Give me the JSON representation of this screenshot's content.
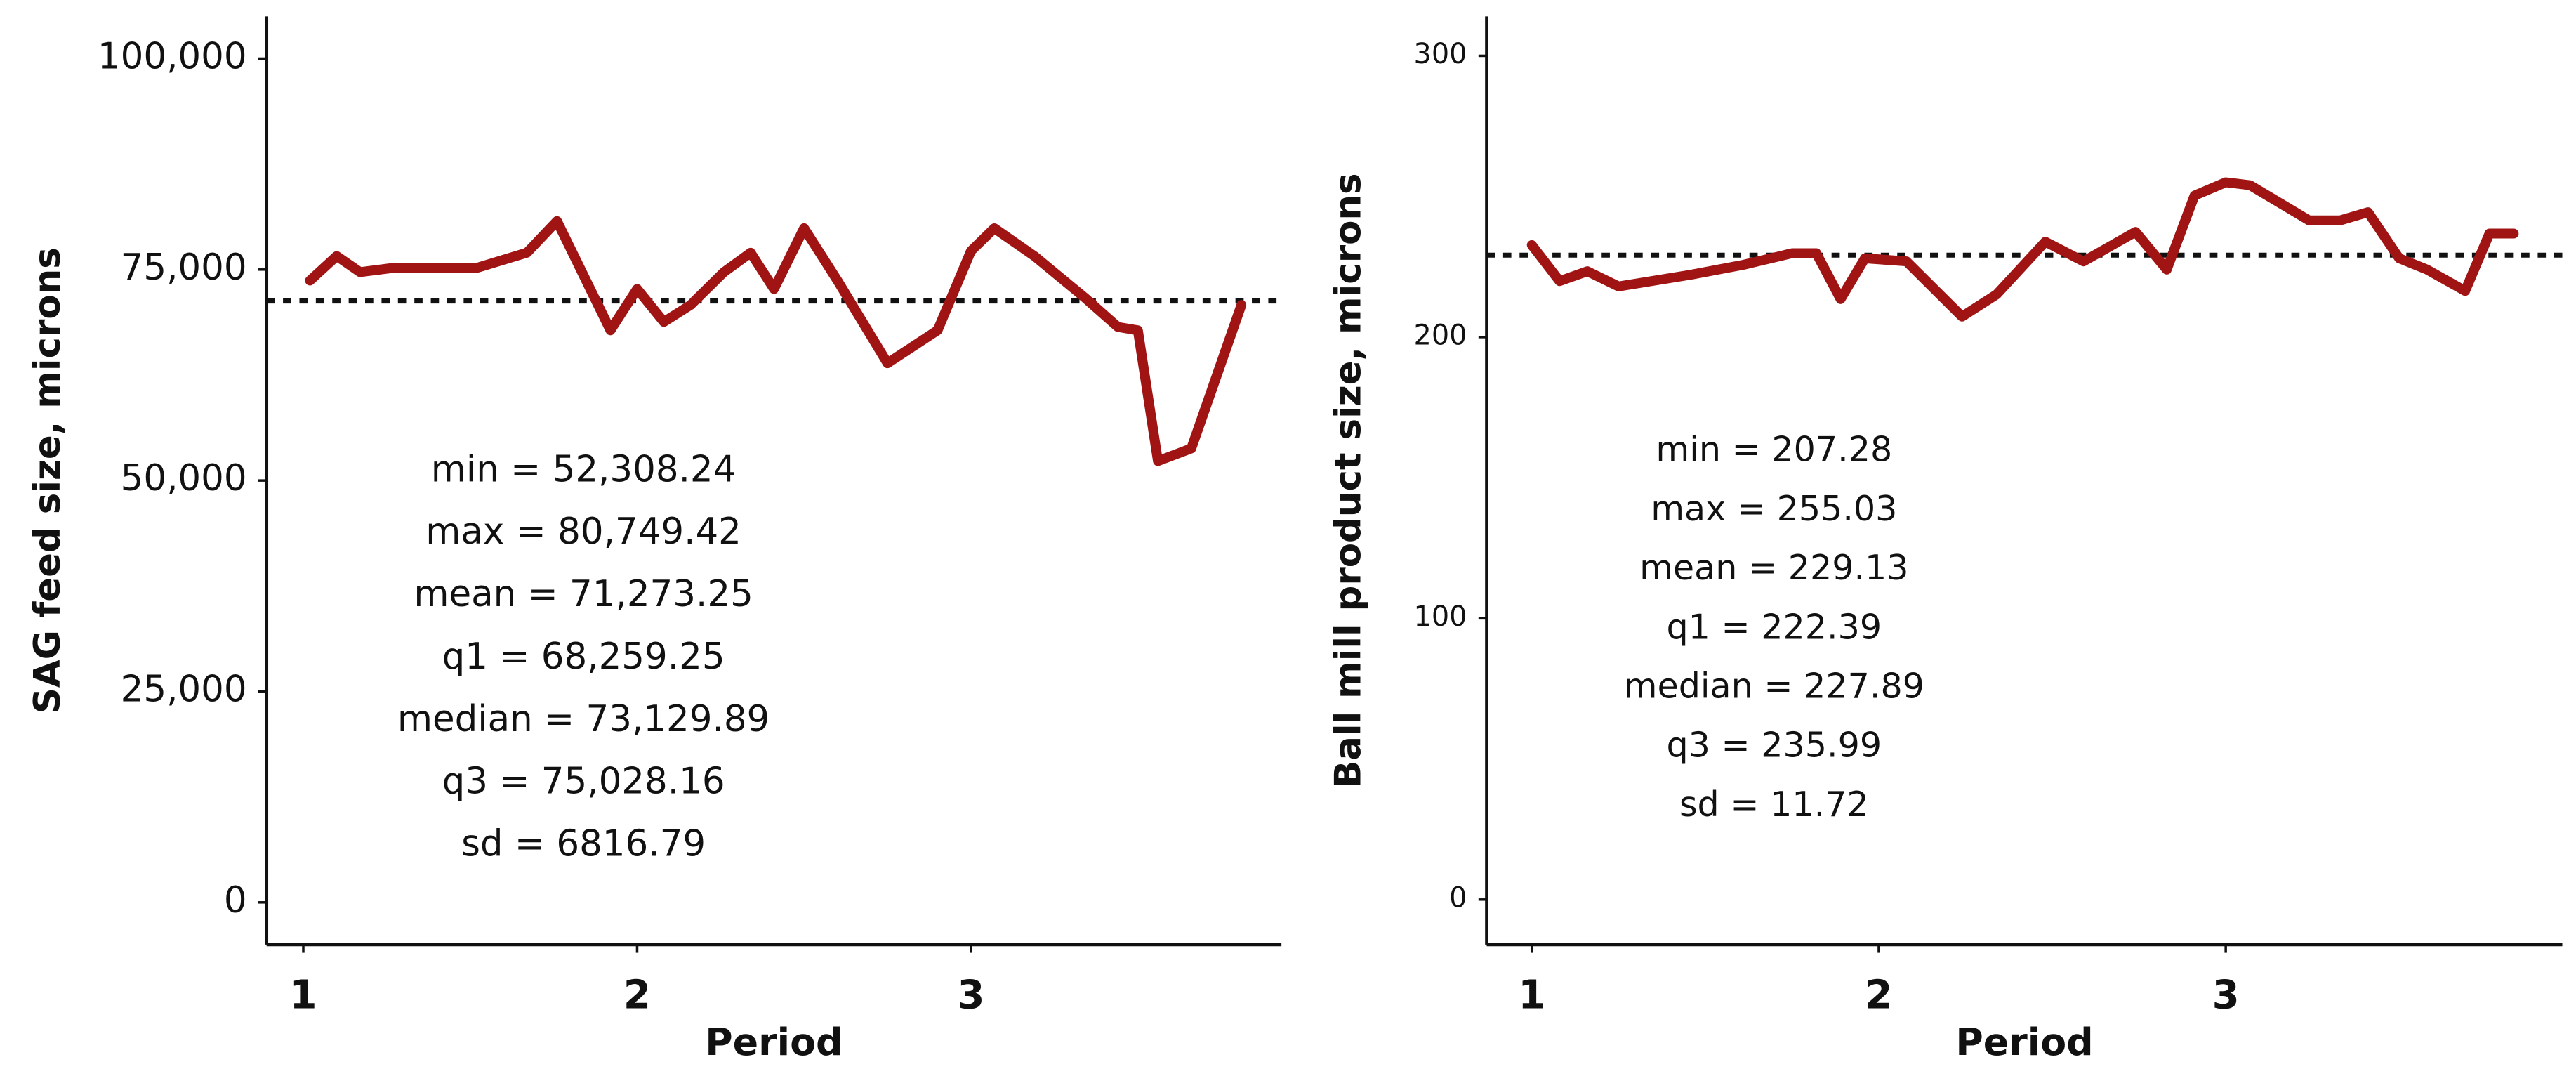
{
  "chart_data": [
    {
      "type": "line",
      "xlabel": "Period",
      "ylabel": "SAG feed size, microns",
      "x": [
        1.02,
        1.1,
        1.17,
        1.27,
        1.52,
        1.67,
        1.76,
        1.92,
        2.0,
        2.08,
        2.16,
        2.26,
        2.34,
        2.41,
        2.5,
        2.6,
        2.75,
        2.9,
        3.0,
        3.07,
        3.19,
        3.34,
        3.44,
        3.5,
        3.56,
        3.66,
        3.81
      ],
      "values": [
        73700,
        76600,
        74700,
        75200,
        75200,
        77000,
        80749.42,
        67800,
        72700,
        68800,
        70800,
        74700,
        77000,
        72700,
        79900,
        73700,
        63900,
        67800,
        77200,
        79900,
        76600,
        71700,
        68200,
        67800,
        52308.24,
        53800,
        70800
      ],
      "color": "#a01414",
      "hline": 71273.25,
      "xlim": [
        0.89,
        3.93
      ],
      "xticks": [
        1,
        2,
        3
      ],
      "ylim": [
        -5000,
        105000
      ],
      "yticks": [
        0,
        {
          "value": 25000,
          "label": "25,000"
        },
        {
          "value": 50000,
          "label": "50,000"
        },
        {
          "value": 75000,
          "label": "75,000"
        },
        {
          "value": 100000,
          "label": "100,000"
        }
      ],
      "annotations": [
        "min = 52,308.24",
        "max = 80,749.42",
        "mean = 71,273.25",
        "q1 = 68,259.25",
        "median = 73,129.89",
        "q3 = 75,028.16",
        "sd = 6816.79"
      ]
    },
    {
      "type": "line",
      "xlabel": "Period",
      "ylabel": "Ball mill product size, microns",
      "x": [
        1.0,
        1.08,
        1.16,
        1.25,
        1.46,
        1.61,
        1.75,
        1.82,
        1.89,
        1.96,
        2.08,
        2.24,
        2.34,
        2.48,
        2.59,
        2.74,
        2.83,
        2.91,
        3.0,
        3.07,
        3.24,
        3.33,
        3.41,
        3.5,
        3.58,
        3.69,
        3.76,
        3.83
      ],
      "values": [
        232.7,
        219.9,
        223.4,
        218,
        222.2,
        225.7,
        229.8,
        229.8,
        213.5,
        228,
        226.9,
        207.28,
        215.2,
        233.9,
        226.9,
        237.4,
        224,
        250.3,
        255.03,
        254,
        241.5,
        241.5,
        244.4,
        228,
        224,
        216.4,
        236.8,
        236.8
      ],
      "color": "#a01414",
      "hline": 229.13,
      "xlim": [
        0.87,
        3.97
      ],
      "xticks": [
        1,
        2,
        3
      ],
      "ylim": [
        -16,
        314
      ],
      "yticks": [
        0,
        100,
        200,
        300
      ],
      "annotations": [
        "min =  207.28",
        "max =  255.03",
        "mean =  229.13",
        "q1 =  222.39",
        "median =  227.89",
        "q3 =  235.99",
        "sd =  11.72"
      ]
    }
  ]
}
